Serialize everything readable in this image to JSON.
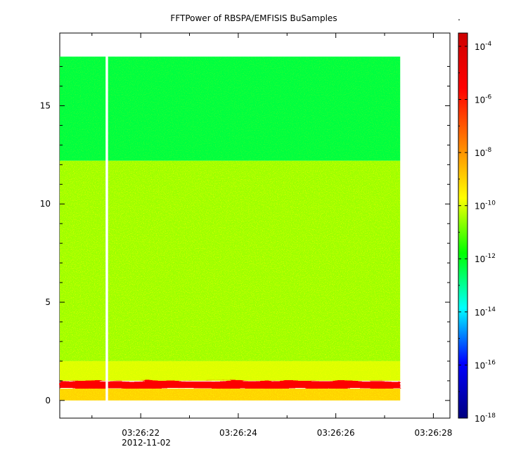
{
  "chart_data": {
    "type": "heatmap",
    "title": "FFTPower of RBSPA/EMFISIS  BuSamples",
    "xlabel": "",
    "ylabel": "",
    "x_tick_labels": [
      "03:26:22",
      "03:26:24",
      "03:26:26",
      "03:26:28"
    ],
    "x_tick_values_sec": [
      22,
      24,
      26,
      28
    ],
    "x_date_label": "2012-11-02",
    "xlim_sec": [
      20.34,
      28.34
    ],
    "data_x_range_sec": [
      20.34,
      27.32
    ],
    "gap_x_sec": [
      21.28,
      21.33
    ],
    "y_tick_labels": [
      "0",
      "5",
      "10",
      "15"
    ],
    "y_tick_values": [
      0,
      5,
      10,
      15
    ],
    "ylim": [
      -0.9,
      18.7
    ],
    "data_y_range": [
      0,
      17.5
    ],
    "bands": [
      {
        "y_range": [
          12.2,
          17.5
        ],
        "log10_power": -12.3
      },
      {
        "y_range": [
          2.0,
          12.2
        ],
        "log10_power": -10.5
      },
      {
        "y_range": [
          1.0,
          2.0
        ],
        "log10_power": -10.0
      },
      {
        "y_range": [
          0.6,
          1.0
        ],
        "log10_power": -5.5
      },
      {
        "y_range": [
          0.0,
          0.6
        ],
        "log10_power": -9.0
      }
    ],
    "colorbar": {
      "scale": "log",
      "range": [
        -18,
        -3.5
      ],
      "tick_exponents": [
        -4,
        -6,
        -8,
        -10,
        -12,
        -14,
        -16,
        -18
      ],
      "tick_base": "10",
      "colormap": [
        "#00007f",
        "#0000ff",
        "#00ffff",
        "#00ff00",
        "#ffff00",
        "#ff7f00",
        "#ff0000",
        "#cc0000"
      ]
    },
    "grid": false
  }
}
